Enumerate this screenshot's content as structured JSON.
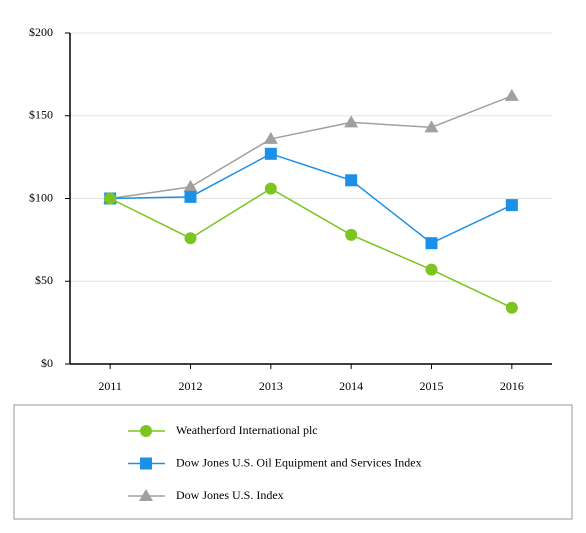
{
  "chart_data": {
    "type": "line",
    "categories": [
      "2011",
      "2012",
      "2013",
      "2014",
      "2015",
      "2016"
    ],
    "series": [
      {
        "name": "Weatherford International plc",
        "color": "#7cc520",
        "marker": "circle",
        "values": [
          100,
          76,
          106,
          78,
          57,
          34
        ]
      },
      {
        "name": "Dow Jones U.S. Oil Equipment and Services Index",
        "color": "#1a90e8",
        "marker": "square",
        "values": [
          100,
          101,
          127,
          111,
          73,
          96
        ]
      },
      {
        "name": "Dow Jones U.S. Index",
        "color": "#a0a0a0",
        "marker": "triangle",
        "values": [
          100,
          107,
          136,
          146,
          143,
          162
        ]
      }
    ],
    "ylim": [
      0,
      200
    ],
    "yticks": [
      {
        "value": 0,
        "label": "$0"
      },
      {
        "value": 50,
        "label": "$50"
      },
      {
        "value": 100,
        "label": "$100"
      },
      {
        "value": 150,
        "label": "$150"
      },
      {
        "value": 200,
        "label": "$200"
      }
    ],
    "grid": true
  }
}
